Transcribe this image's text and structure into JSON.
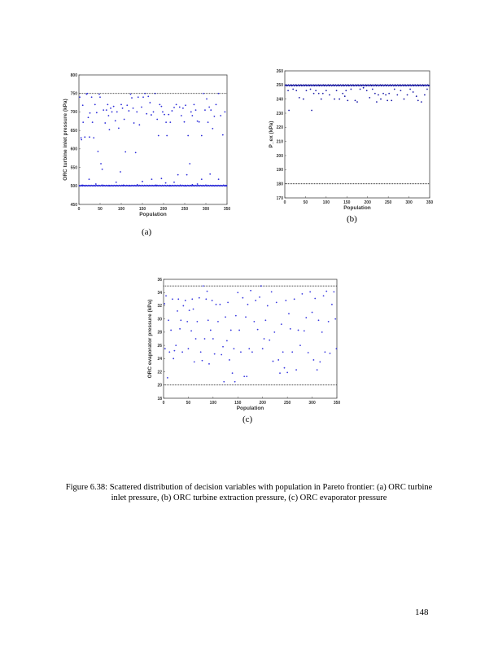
{
  "chart_data": [
    {
      "id": "a",
      "type": "scatter",
      "sublabel": "(a)",
      "xlabel": "Population",
      "ylabel": "ORC turbine inlet pressure (kPa)",
      "xlim": [
        0,
        350
      ],
      "ylim": [
        450,
        800
      ],
      "xticks": [
        0,
        50,
        100,
        150,
        200,
        250,
        300,
        350
      ],
      "yticks": [
        450,
        500,
        550,
        600,
        650,
        700,
        750,
        800
      ],
      "bounds": [
        500,
        750
      ],
      "color": "#2b2bd9",
      "points": [
        [
          2,
          740
        ],
        [
          5,
          630
        ],
        [
          6,
          625
        ],
        [
          9,
          718
        ],
        [
          10,
          672
        ],
        [
          14,
          632
        ],
        [
          18,
          748
        ],
        [
          20,
          750
        ],
        [
          22,
          685
        ],
        [
          25,
          632
        ],
        [
          26,
          697
        ],
        [
          30,
          740
        ],
        [
          32,
          672
        ],
        [
          35,
          630
        ],
        [
          38,
          720
        ],
        [
          42,
          698
        ],
        [
          45,
          593
        ],
        [
          48,
          748
        ],
        [
          50,
          740
        ],
        [
          52,
          560
        ],
        [
          55,
          545
        ],
        [
          58,
          705
        ],
        [
          62,
          670
        ],
        [
          65,
          705
        ],
        [
          68,
          720
        ],
        [
          70,
          690
        ],
        [
          72,
          652
        ],
        [
          75,
          710
        ],
        [
          78,
          700
        ],
        [
          82,
          715
        ],
        [
          86,
          676
        ],
        [
          90,
          700
        ],
        [
          94,
          656
        ],
        [
          98,
          538
        ],
        [
          100,
          720
        ],
        [
          103,
          710
        ],
        [
          107,
          680
        ],
        [
          110,
          592
        ],
        [
          114,
          718
        ],
        [
          118,
          703
        ],
        [
          122,
          748
        ],
        [
          125,
          738
        ],
        [
          128,
          710
        ],
        [
          130,
          670
        ],
        [
          134,
          590
        ],
        [
          137,
          700
        ],
        [
          140,
          740
        ],
        [
          143,
          665
        ],
        [
          148,
          713
        ],
        [
          152,
          740
        ],
        [
          156,
          750
        ],
        [
          160,
          695
        ],
        [
          164,
          742
        ],
        [
          168,
          725
        ],
        [
          171,
          692
        ],
        [
          176,
          700
        ],
        [
          180,
          750
        ],
        [
          185,
          680
        ],
        [
          188,
          636
        ],
        [
          191,
          720
        ],
        [
          195,
          715
        ],
        [
          198,
          700
        ],
        [
          202,
          693
        ],
        [
          206,
          672
        ],
        [
          208,
          636
        ],
        [
          212,
          693
        ],
        [
          216,
          672
        ],
        [
          220,
          703
        ],
        [
          225,
          712
        ],
        [
          230,
          720
        ],
        [
          234,
          530
        ],
        [
          238,
          713
        ],
        [
          242,
          690
        ],
        [
          246,
          710
        ],
        [
          249,
          673
        ],
        [
          252,
          718
        ],
        [
          255,
          530
        ],
        [
          258,
          636
        ],
        [
          262,
          560
        ],
        [
          265,
          700
        ],
        [
          268,
          690
        ],
        [
          272,
          720
        ],
        [
          276,
          705
        ],
        [
          280,
          675
        ],
        [
          284,
          673
        ],
        [
          290,
          636
        ],
        [
          294,
          750
        ],
        [
          298,
          705
        ],
        [
          302,
          735
        ],
        [
          305,
          672
        ],
        [
          308,
          713
        ],
        [
          312,
          705
        ],
        [
          316,
          655
        ],
        [
          320,
          688
        ],
        [
          324,
          720
        ],
        [
          330,
          750
        ],
        [
          335,
          690
        ],
        [
          340,
          638
        ],
        [
          345,
          700
        ],
        [
          8,
          502
        ],
        [
          15,
          500
        ],
        [
          24,
          518
        ],
        [
          40,
          505
        ],
        [
          55,
          502
        ],
        [
          72,
          500
        ],
        [
          88,
          510
        ],
        [
          105,
          502
        ],
        [
          120,
          500
        ],
        [
          138,
          503
        ],
        [
          150,
          512
        ],
        [
          165,
          500
        ],
        [
          172,
          518
        ],
        [
          182,
          502
        ],
        [
          195,
          520
        ],
        [
          205,
          508
        ],
        [
          215,
          500
        ],
        [
          225,
          510
        ],
        [
          240,
          502
        ],
        [
          252,
          500
        ],
        [
          268,
          503
        ],
        [
          280,
          505
        ],
        [
          290,
          518
        ],
        [
          300,
          502
        ],
        [
          310,
          532
        ],
        [
          320,
          500
        ],
        [
          330,
          518
        ],
        [
          342,
          502
        ],
        [
          348,
          500
        ]
      ]
    },
    {
      "id": "b",
      "type": "scatter",
      "sublabel": "(b)",
      "xlabel": "Population",
      "ylabel": "P_ex (kPa)",
      "xlim": [
        0,
        350
      ],
      "ylim": [
        170,
        260
      ],
      "xticks": [
        0,
        50,
        100,
        150,
        200,
        250,
        300,
        350
      ],
      "yticks": [
        170,
        180,
        190,
        200,
        210,
        220,
        230,
        240,
        250,
        260
      ],
      "bounds": [
        180,
        250
      ],
      "color": "#1a1aa8",
      "points": [
        [
          10,
          232
        ],
        [
          8,
          246
        ],
        [
          20,
          247
        ],
        [
          28,
          246
        ],
        [
          35,
          241
        ],
        [
          45,
          240
        ],
        [
          52,
          246
        ],
        [
          62,
          247
        ],
        [
          65,
          232
        ],
        [
          70,
          244
        ],
        [
          75,
          246
        ],
        [
          82,
          244
        ],
        [
          88,
          240
        ],
        [
          92,
          244
        ],
        [
          100,
          246
        ],
        [
          108,
          243
        ],
        [
          120,
          240
        ],
        [
          125,
          246
        ],
        [
          132,
          240
        ],
        [
          140,
          244
        ],
        [
          145,
          242
        ],
        [
          148,
          246
        ],
        [
          152,
          239
        ],
        [
          160,
          247
        ],
        [
          170,
          239
        ],
        [
          175,
          238
        ],
        [
          182,
          247
        ],
        [
          190,
          248
        ],
        [
          198,
          246
        ],
        [
          205,
          241
        ],
        [
          212,
          247
        ],
        [
          218,
          244
        ],
        [
          222,
          238
        ],
        [
          226,
          243
        ],
        [
          232,
          240
        ],
        [
          238,
          244
        ],
        [
          244,
          243
        ],
        [
          248,
          239
        ],
        [
          252,
          244
        ],
        [
          258,
          239
        ],
        [
          265,
          247
        ],
        [
          272,
          243
        ],
        [
          280,
          246
        ],
        [
          288,
          240
        ],
        [
          296,
          243
        ],
        [
          303,
          247
        ],
        [
          310,
          245
        ],
        [
          318,
          242
        ],
        [
          322,
          239
        ],
        [
          330,
          238
        ],
        [
          338,
          243
        ],
        [
          344,
          247
        ]
      ]
    },
    {
      "id": "c",
      "type": "scatter",
      "sublabel": "(c)",
      "xlabel": "Population",
      "ylabel": "ORC evaporator pressure (kPa)",
      "xlim": [
        0,
        350
      ],
      "ylim": [
        18,
        36
      ],
      "xticks": [
        0,
        50,
        100,
        150,
        200,
        250,
        300,
        350
      ],
      "yticks": [
        18,
        20,
        22,
        24,
        26,
        28,
        30,
        32,
        34,
        36
      ],
      "bounds": [
        20,
        35
      ],
      "color": "#3a3ae0",
      "points": [
        [
          2,
          32.3
        ],
        [
          3,
          25.5
        ],
        [
          5,
          33.5
        ],
        [
          8,
          21.1
        ],
        [
          10,
          29.8
        ],
        [
          12,
          25
        ],
        [
          15,
          28.3
        ],
        [
          18,
          33
        ],
        [
          20,
          24
        ],
        [
          22,
          25.2
        ],
        [
          25,
          26
        ],
        [
          28,
          31.2
        ],
        [
          30,
          33
        ],
        [
          33,
          28.5
        ],
        [
          35,
          29.8
        ],
        [
          38,
          25
        ],
        [
          40,
          32
        ],
        [
          44,
          32.8
        ],
        [
          48,
          29.6
        ],
        [
          50,
          25.5
        ],
        [
          52,
          31.3
        ],
        [
          56,
          28.2
        ],
        [
          58,
          33
        ],
        [
          60,
          31.5
        ],
        [
          62,
          23.5
        ],
        [
          65,
          27
        ],
        [
          68,
          29.6
        ],
        [
          72,
          33.2
        ],
        [
          75,
          25
        ],
        [
          78,
          23.7
        ],
        [
          80,
          35
        ],
        [
          83,
          27
        ],
        [
          86,
          33
        ],
        [
          88,
          34.2
        ],
        [
          90,
          29.8
        ],
        [
          92,
          23.2
        ],
        [
          95,
          28.3
        ],
        [
          98,
          32.8
        ],
        [
          100,
          27
        ],
        [
          103,
          24.7
        ],
        [
          106,
          32.2
        ],
        [
          110,
          29.6
        ],
        [
          114,
          32.2
        ],
        [
          117,
          24.6
        ],
        [
          120,
          25.8
        ],
        [
          122,
          20.5
        ],
        [
          125,
          30.3
        ],
        [
          128,
          26.7
        ],
        [
          130,
          32.5
        ],
        [
          133,
          23.8
        ],
        [
          136,
          28.3
        ],
        [
          139,
          21.8
        ],
        [
          142,
          25.5
        ],
        [
          144,
          20.5
        ],
        [
          146,
          30.5
        ],
        [
          150,
          34
        ],
        [
          153,
          28.3
        ],
        [
          156,
          25
        ],
        [
          160,
          33.2
        ],
        [
          163,
          21.3
        ],
        [
          166,
          30.3
        ],
        [
          168,
          21.3
        ],
        [
          170,
          32.2
        ],
        [
          173,
          25.5
        ],
        [
          176,
          34.3
        ],
        [
          179,
          25
        ],
        [
          183,
          29.6
        ],
        [
          186,
          32.8
        ],
        [
          190,
          28.4
        ],
        [
          194,
          33.3
        ],
        [
          197,
          35
        ],
        [
          200,
          25.5
        ],
        [
          203,
          27
        ],
        [
          206,
          29.8
        ],
        [
          210,
          32
        ],
        [
          214,
          26.8
        ],
        [
          218,
          34.1
        ],
        [
          221,
          23.6
        ],
        [
          224,
          28
        ],
        [
          228,
          32.5
        ],
        [
          232,
          23.8
        ],
        [
          235,
          21.8
        ],
        [
          238,
          29.2
        ],
        [
          241,
          25
        ],
        [
          244,
          22.6
        ],
        [
          247,
          32.8
        ],
        [
          250,
          21.9
        ],
        [
          253,
          30.8
        ],
        [
          256,
          28.5
        ],
        [
          260,
          25
        ],
        [
          264,
          33
        ],
        [
          268,
          22.3
        ],
        [
          272,
          28.3
        ],
        [
          276,
          26
        ],
        [
          280,
          33.8
        ],
        [
          284,
          28.2
        ],
        [
          288,
          30.2
        ],
        [
          292,
          24.9
        ],
        [
          296,
          34.1
        ],
        [
          300,
          31
        ],
        [
          303,
          23.8
        ],
        [
          306,
          33.1
        ],
        [
          310,
          22.3
        ],
        [
          313,
          29.8
        ],
        [
          316,
          23.5
        ],
        [
          320,
          28
        ],
        [
          323,
          33.5
        ],
        [
          326,
          25
        ],
        [
          329,
          34.2
        ],
        [
          333,
          29.6
        ],
        [
          336,
          24.8
        ],
        [
          340,
          32.2
        ],
        [
          344,
          34.1
        ],
        [
          347,
          30
        ],
        [
          349,
          25.5
        ]
      ]
    }
  ],
  "caption": "Figure 6.38: Scattered distribution of decision variables with population in Pareto frontier: (a) ORC turbine inlet pressure, (b) ORC turbine extraction pressure, (c) ORC evaporator pressure",
  "page_number": "148"
}
